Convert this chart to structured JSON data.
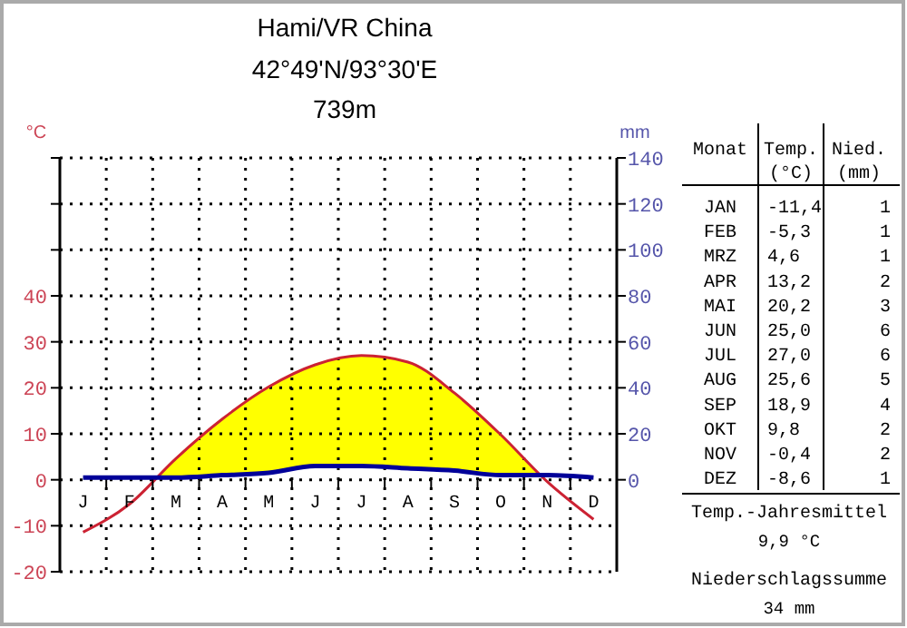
{
  "chart_data": {
    "type": "line",
    "title": "Hami/VR China",
    "subtitle": "42°49'N/93°30'E\n739m",
    "ylabel": "°C",
    "y2label": "mm",
    "categories": [
      "J",
      "F",
      "M",
      "A",
      "M",
      "J",
      "J",
      "A",
      "S",
      "O",
      "N",
      "D"
    ],
    "series": [
      {
        "color": "#cc2233",
        "values": [
          -11.4,
          -5.3,
          4.6,
          13.2,
          20.2,
          25.0,
          27.0,
          25.6,
          18.9,
          9.8,
          -0.4,
          -8.6
        ]
      },
      {
        "color": "#000099",
        "axis": "y2",
        "values": [
          1,
          1,
          1,
          2,
          3,
          6,
          6,
          5,
          4,
          2,
          2,
          1
        ]
      }
    ],
    "ylim": [
      -20,
      70
    ],
    "yticks": [
      -20,
      -10,
      0,
      10,
      20,
      30,
      40,
      {
        "value": 50,
        "label": null
      },
      {
        "value": 60,
        "label": null
      },
      {
        "value": 70,
        "label": null
      }
    ],
    "y2lim": [
      -40,
      140
    ],
    "y2ticks": [
      0,
      20,
      40,
      60,
      80,
      100,
      120,
      140
    ],
    "grid": true,
    "annotations": [
      "Monat",
      "Temp. (°C)",
      "Nied. (mm)",
      "JAN",
      "-11,4",
      "1",
      "FEB",
      "-5,3",
      "1",
      "MRZ",
      "4,6",
      "1",
      "APR",
      "13,2",
      "2",
      "MAI",
      "20,2",
      "3",
      "JUN",
      "25,0",
      "6",
      "JUL",
      "27,0",
      "6",
      "AUG",
      "25,6",
      "5",
      "SEP",
      "18,9",
      "4",
      "OKT",
      "9,8",
      "2",
      "NOV",
      "-0,4",
      "2",
      "DEZ",
      "-8,6",
      "1",
      "Temp.-Jahresmittel",
      "9,9 °C",
      "Niederschlagssumme",
      "34 mm"
    ]
  }
}
